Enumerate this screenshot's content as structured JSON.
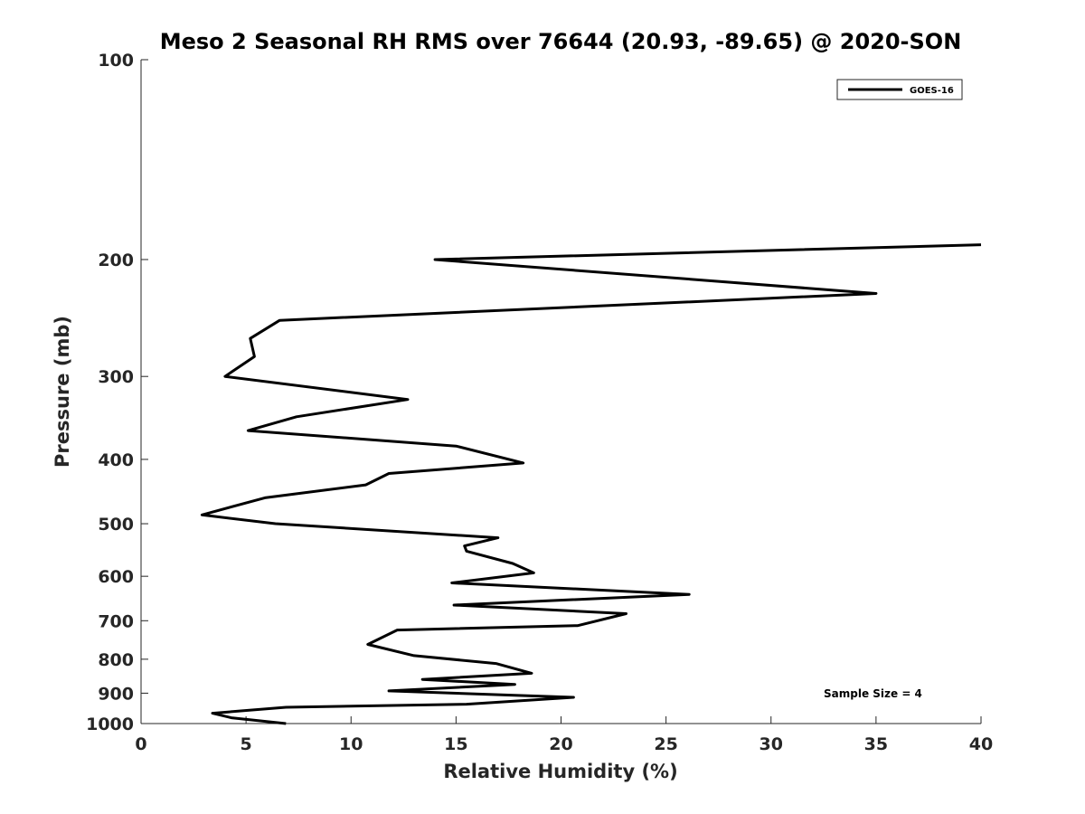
{
  "chart_data": {
    "type": "line",
    "title": "Meso 2 Seasonal RH RMS over 76644 (20.93, -89.65) @ 2020-SON",
    "xlabel": "Relative Humidity (%)",
    "ylabel": "Pressure (mb)",
    "xlim": [
      0,
      40
    ],
    "ylim": [
      100,
      1000
    ],
    "y_scale": "log",
    "y_reversed": true,
    "grid": false,
    "legend_placement": "top-right",
    "x_ticks": [
      0,
      5,
      10,
      15,
      20,
      25,
      30,
      35,
      40
    ],
    "x_tick_labels": [
      "0",
      "5",
      "10",
      "15",
      "20",
      "25",
      "30",
      "35",
      "40"
    ],
    "y_ticks": [
      100,
      200,
      300,
      400,
      500,
      600,
      700,
      800,
      900,
      1000
    ],
    "y_tick_labels": [
      "100",
      "200",
      "300",
      "400",
      "500",
      "600",
      "700",
      "800",
      "900",
      "1000"
    ],
    "series": [
      {
        "name": "GOES-16",
        "color": "#000000",
        "x": [
          40.0,
          14.0,
          35.0,
          6.6,
          5.2,
          5.4,
          4.0,
          12.7,
          7.4,
          5.1,
          15.0,
          18.2,
          11.8,
          10.7,
          5.9,
          2.9,
          6.4,
          17.0,
          15.4,
          15.5,
          17.7,
          18.7,
          14.8,
          26.1,
          14.9,
          23.1,
          20.8,
          12.2,
          10.8,
          13.0,
          16.9,
          18.6,
          13.4,
          17.8,
          11.8,
          20.6,
          15.5,
          6.9,
          3.4,
          4.3,
          6.9
        ],
        "y": [
          190,
          200,
          225,
          247,
          263,
          280,
          300,
          325,
          345,
          362,
          382,
          405,
          420,
          437,
          457,
          485,
          500,
          525,
          540,
          550,
          574,
          593,
          614,
          639,
          663,
          683,
          712,
          723,
          760,
          790,
          812,
          840,
          858,
          873,
          893,
          913,
          935,
          945,
          965,
          980,
          1000
        ]
      }
    ],
    "annotations": [
      "Sample Size = 4"
    ]
  }
}
